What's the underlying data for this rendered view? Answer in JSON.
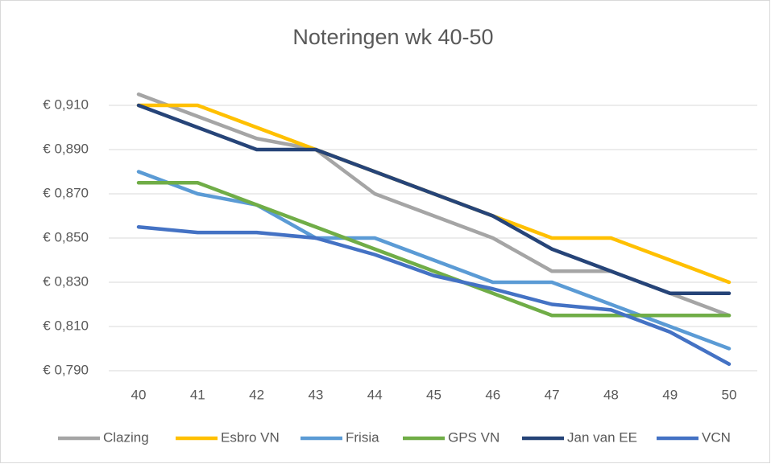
{
  "chart_data": {
    "type": "line",
    "title": "Noteringen wk 40-50",
    "categories": [
      "40",
      "41",
      "42",
      "43",
      "44",
      "45",
      "46",
      "47",
      "48",
      "49",
      "50"
    ],
    "series": [
      {
        "name": "Clazing",
        "color": "#a5a5a5",
        "values": [
          0.915,
          0.905,
          0.895,
          0.89,
          0.87,
          0.86,
          0.85,
          0.835,
          0.835,
          0.825,
          0.815
        ]
      },
      {
        "name": "Esbro VN",
        "color": "#ffc000",
        "values": [
          0.91,
          0.91,
          0.9,
          0.89,
          0.88,
          0.87,
          0.86,
          0.85,
          0.85,
          0.84,
          0.83
        ]
      },
      {
        "name": "Frisia",
        "color": "#5b9bd5",
        "values": [
          0.88,
          0.87,
          0.865,
          0.85,
          0.85,
          0.84,
          0.83,
          0.83,
          0.82,
          0.81,
          0.8
        ]
      },
      {
        "name": "GPS VN",
        "color": "#70ad47",
        "values": [
          0.875,
          0.875,
          0.865,
          0.855,
          0.845,
          0.835,
          0.825,
          0.815,
          0.815,
          0.815,
          0.815
        ]
      },
      {
        "name": "Jan van EE",
        "color": "#264478",
        "values": [
          0.91,
          0.9,
          0.89,
          0.89,
          0.88,
          0.87,
          0.86,
          0.845,
          0.835,
          0.825,
          0.825
        ]
      },
      {
        "name": "VCN",
        "color": "#4472c4",
        "values": [
          0.855,
          0.8525,
          0.8525,
          0.85,
          0.8425,
          0.833,
          0.827,
          0.82,
          0.8175,
          0.8075,
          0.793
        ]
      }
    ],
    "ylim": [
      0.79,
      0.92
    ],
    "yticks": [
      {
        "value": 0.79,
        "label": "€ 0,790"
      },
      {
        "value": 0.81,
        "label": "€ 0,810"
      },
      {
        "value": 0.83,
        "label": "€ 0,830"
      },
      {
        "value": 0.85,
        "label": "€ 0,850"
      },
      {
        "value": 0.87,
        "label": "€ 0,870"
      },
      {
        "value": 0.89,
        "label": "€ 0,890"
      },
      {
        "value": 0.91,
        "label": "€ 0,910"
      }
    ],
    "grid": true,
    "legend": "bottom"
  }
}
